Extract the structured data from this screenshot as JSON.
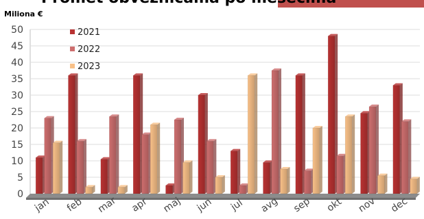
{
  "page": {
    "title": "Promet obveznicama po mesecima"
  },
  "chart_data": {
    "type": "bar",
    "title": "Promet obveznicama po mesecima",
    "unit_label": "Miliona €",
    "categories": [
      "jan",
      "feb",
      "mar",
      "apr",
      "maj",
      "jun",
      "jul",
      "avg",
      "sep",
      "okt",
      "nov",
      "dec"
    ],
    "series": [
      {
        "name": "2021",
        "color": "#b83232",
        "values": [
          11,
          36,
          10.5,
          36,
          2.5,
          30,
          13,
          9.5,
          36,
          48,
          24.5,
          33
        ]
      },
      {
        "name": "2022",
        "color": "#cd6e6e",
        "values": [
          23,
          16,
          23.5,
          18,
          22.5,
          16,
          2.5,
          37.5,
          7,
          11.5,
          26.5,
          22
        ]
      },
      {
        "name": "2023",
        "color": "#f8c088",
        "values": [
          15.5,
          2,
          2,
          21,
          9.5,
          5,
          36,
          7.5,
          20,
          23.5,
          5.5,
          4.5
        ]
      }
    ],
    "ylim": [
      0,
      50
    ],
    "yticks": [
      0,
      5,
      10,
      15,
      20,
      25,
      30,
      35,
      40,
      45,
      50
    ],
    "grid": true,
    "legend": "top-left"
  }
}
